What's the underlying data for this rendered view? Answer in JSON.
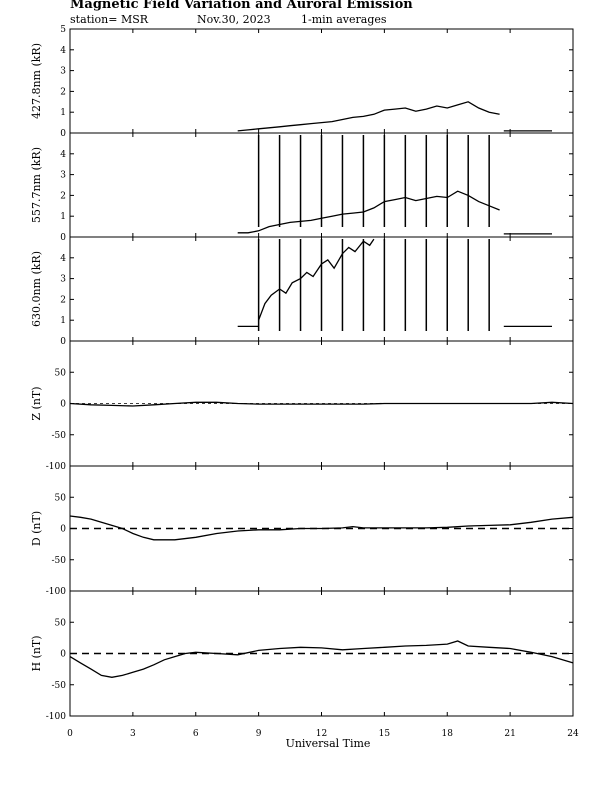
{
  "header": {
    "title": "Magnetic Field Variation and Auroral Emission",
    "station": "station= MSR",
    "date": "Nov.30, 2023",
    "averaging": "1-min averages"
  },
  "chart_data": {
    "type": "line",
    "xlabel": "Universal Time",
    "xlim": [
      0,
      24
    ],
    "xticks": [
      0,
      3,
      6,
      9,
      12,
      15,
      18,
      21,
      24
    ],
    "panels": [
      {
        "name": "427.8nm",
        "ylabel": "427.8nm (kR)",
        "ylim": [
          0,
          5
        ],
        "yticks": [
          0,
          1,
          2,
          3,
          4,
          5
        ],
        "baseline": null,
        "spikes": [],
        "series": [
          {
            "x": [
              8.0,
              8.5,
              9.0,
              9.5,
              10.0,
              10.5,
              11.0,
              11.5,
              12.0,
              12.5,
              13.0,
              13.5,
              14.0,
              14.5,
              15.0,
              15.5,
              16.0,
              16.5,
              17.0,
              17.5,
              18.0,
              18.5,
              19.0,
              19.5,
              20.0,
              20.5
            ],
            "y": [
              0.1,
              0.15,
              0.2,
              0.25,
              0.3,
              0.35,
              0.4,
              0.45,
              0.5,
              0.55,
              0.65,
              0.75,
              0.8,
              0.9,
              1.1,
              1.15,
              1.2,
              1.05,
              1.15,
              1.3,
              1.2,
              1.35,
              1.5,
              1.2,
              1.0,
              0.9
            ]
          },
          {
            "x": [
              20.7,
              21.5,
              22.0,
              22.5,
              23.0
            ],
            "y": [
              0.1,
              0.1,
              0.1,
              0.1,
              0.1
            ]
          }
        ]
      },
      {
        "name": "557.7nm",
        "ylabel": "557.7nm (kR)",
        "ylim": [
          0,
          5
        ],
        "yticks": [
          0,
          1,
          2,
          3,
          4
        ],
        "baseline": null,
        "spikes": [
          9,
          10,
          11,
          12,
          13,
          14,
          15,
          16,
          17,
          18,
          19,
          20
        ],
        "series": [
          {
            "x": [
              8.0,
              8.5,
              9.0,
              9.5,
              10.0,
              10.5,
              11.0,
              11.5,
              12.0,
              12.5,
              13.0,
              13.5,
              14.0,
              14.5,
              15.0,
              15.5,
              16.0,
              16.5,
              17.0,
              17.5,
              18.0,
              18.5,
              19.0,
              19.5,
              20.0,
              20.5
            ],
            "y": [
              0.2,
              0.2,
              0.3,
              0.5,
              0.6,
              0.7,
              0.75,
              0.8,
              0.9,
              1.0,
              1.1,
              1.15,
              1.2,
              1.4,
              1.7,
              1.8,
              1.9,
              1.75,
              1.85,
              1.95,
              1.9,
              2.2,
              2.0,
              1.7,
              1.5,
              1.3
            ]
          },
          {
            "x": [
              20.7,
              21.5,
              22.0,
              22.5,
              23.0
            ],
            "y": [
              0.15,
              0.15,
              0.15,
              0.15,
              0.15
            ]
          }
        ]
      },
      {
        "name": "630.0nm",
        "ylabel": "630.0nm (kR)",
        "ylim": [
          0,
          5
        ],
        "yticks": [
          0,
          1,
          2,
          3,
          4
        ],
        "baseline": null,
        "spikes": [
          9,
          10,
          11,
          12,
          13,
          14,
          15,
          16,
          17,
          18,
          19,
          20
        ],
        "series": [
          {
            "x": [
              8.0,
              8.5,
              9.0
            ],
            "y": [
              0.7,
              0.7,
              0.7
            ]
          },
          {
            "x": [
              9.0,
              9.3,
              9.6,
              10.0,
              10.3,
              10.6,
              11.0,
              11.3,
              11.6,
              12.0,
              12.3,
              12.6,
              13.0,
              13.3,
              13.6,
              14.0,
              14.3,
              14.5
            ],
            "y": [
              1.0,
              1.8,
              2.2,
              2.5,
              2.3,
              2.8,
              3.0,
              3.3,
              3.1,
              3.7,
              3.9,
              3.5,
              4.2,
              4.5,
              4.3,
              4.8,
              4.6,
              4.9
            ]
          },
          {
            "x": [
              20.7,
              21.5,
              22.0,
              22.5,
              23.0
            ],
            "y": [
              0.7,
              0.7,
              0.7,
              0.7,
              0.7
            ]
          }
        ]
      },
      {
        "name": "Z",
        "ylabel": "Z (nT)",
        "ylim": [
          -100,
          100
        ],
        "yticks": [
          -100,
          -50,
          0,
          50
        ],
        "baseline": 0,
        "spikes": [],
        "series": [
          {
            "x": [
              0,
              1,
              2,
              3,
              4,
              5,
              6,
              7,
              8,
              9,
              10,
              11,
              12,
              13,
              14,
              15,
              16,
              17,
              18,
              19,
              20,
              21,
              22,
              23,
              24
            ],
            "y": [
              0,
              -2,
              -3,
              -4,
              -2,
              0,
              2,
              2,
              0,
              -1,
              -1,
              -1,
              -1,
              -1,
              -1,
              0,
              0,
              0,
              0,
              0,
              0,
              0,
              0,
              2,
              0
            ]
          }
        ]
      },
      {
        "name": "D",
        "ylabel": "D (nT)",
        "ylim": [
          -100,
          100
        ],
        "yticks": [
          -100,
          -50,
          0,
          50
        ],
        "baseline": 0,
        "spikes": [],
        "series": [
          {
            "x": [
              0,
              0.5,
              1,
              1.5,
              2,
              2.5,
              3,
              3.5,
              4,
              5,
              6,
              7,
              8,
              9,
              10,
              11,
              12,
              13,
              13.5,
              14,
              15,
              16,
              17,
              18,
              19,
              20,
              21,
              22,
              23,
              24
            ],
            "y": [
              20,
              18,
              15,
              10,
              5,
              0,
              -8,
              -14,
              -18,
              -18,
              -14,
              -8,
              -4,
              -2,
              -2,
              0,
              0,
              1,
              3,
              1,
              1,
              1,
              1,
              2,
              4,
              5,
              6,
              10,
              15,
              18
            ]
          }
        ]
      },
      {
        "name": "H",
        "ylabel": "H (nT)",
        "ylim": [
          -100,
          100
        ],
        "yticks": [
          -100,
          -50,
          0,
          50
        ],
        "baseline": 0,
        "spikes": [],
        "series": [
          {
            "x": [
              0,
              0.5,
              1,
              1.5,
              2,
              2.5,
              3,
              3.5,
              4,
              4.5,
              5,
              5.5,
              6,
              7,
              8,
              9,
              10,
              11,
              12,
              13,
              14,
              15,
              16,
              17,
              18,
              18.5,
              19,
              20,
              21,
              22,
              23,
              24
            ],
            "y": [
              -5,
              -15,
              -25,
              -35,
              -38,
              -35,
              -30,
              -25,
              -18,
              -10,
              -5,
              0,
              2,
              0,
              -2,
              5,
              8,
              10,
              9,
              6,
              8,
              10,
              12,
              13,
              15,
              20,
              12,
              10,
              8,
              2,
              -5,
              -15
            ]
          }
        ]
      }
    ]
  }
}
